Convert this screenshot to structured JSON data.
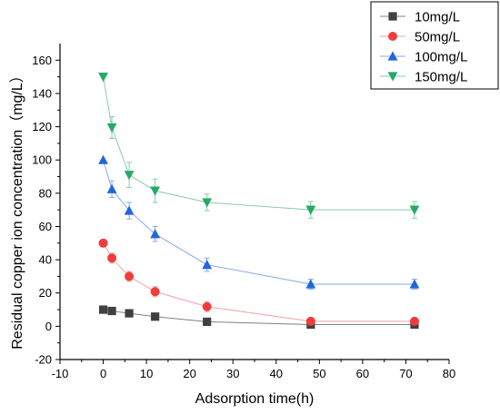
{
  "chart_data": {
    "type": "line",
    "xlabel": "Adsorption time(h)",
    "ylabel": "Residual copper ion concentration（mg/L）",
    "xlim": [
      -10,
      80
    ],
    "ylim": [
      -20,
      170
    ],
    "xticks": [
      -10,
      0,
      10,
      20,
      30,
      40,
      50,
      60,
      70,
      80
    ],
    "yticks": [
      -20,
      0,
      20,
      40,
      60,
      80,
      100,
      120,
      140,
      160
    ],
    "legend_position": "top-right",
    "grid": false,
    "x": [
      0,
      2,
      6,
      12,
      24,
      48,
      72
    ],
    "series": [
      {
        "name": "10mg/L",
        "marker": "square",
        "color": "#404040",
        "line_color": "#808080",
        "values": [
          10,
          9.2,
          7.8,
          5.8,
          2.7,
          1.0,
          1.0
        ],
        "errors": [
          0,
          0.5,
          0.5,
          0.5,
          0.8,
          0.5,
          0.5
        ]
      },
      {
        "name": "50mg/L",
        "marker": "circle",
        "color": "#f03c3c",
        "line_color": "#f5a0a0",
        "values": [
          50,
          41,
          30,
          20.8,
          11.8,
          3.0,
          3.0
        ],
        "errors": [
          0,
          3,
          3,
          3,
          3,
          2,
          2
        ]
      },
      {
        "name": "100mg/L",
        "marker": "triangle-up",
        "color": "#2266dd",
        "line_color": "#88aaee",
        "values": [
          100,
          82.5,
          69.5,
          55.5,
          37,
          25.3,
          25.3
        ],
        "errors": [
          0,
          5,
          5,
          4.5,
          4,
          3,
          3
        ]
      },
      {
        "name": "150mg/L",
        "marker": "triangle-down",
        "color": "#22aa66",
        "line_color": "#88ccaa",
        "values": [
          150,
          119.5,
          91,
          81.5,
          74.5,
          70,
          70
        ],
        "errors": [
          0,
          6.5,
          7.5,
          7,
          5,
          5,
          5
        ]
      }
    ]
  }
}
